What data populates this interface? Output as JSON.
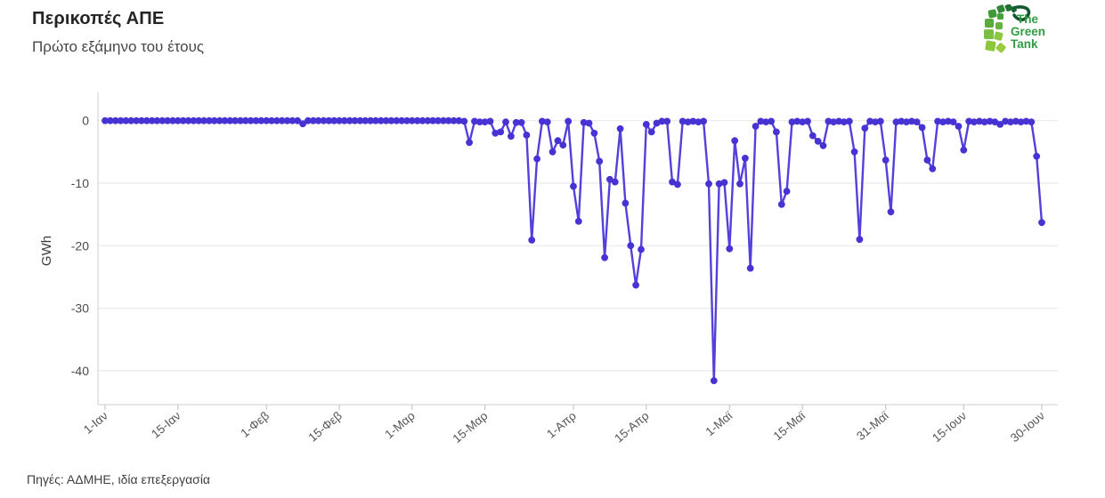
{
  "header": {
    "title": "Περικοπές ΑΠΕ",
    "subtitle": "Πρώτο εξάμηνο του έτους"
  },
  "logo": {
    "line1": "The",
    "line2": "Green",
    "line3": "Tank",
    "text_color": "#2f9c44",
    "tile_colors": [
      "#8dc63f",
      "#7bbf3e",
      "#5aab3a",
      "#3f9a37",
      "#2d8736",
      "#1d7232",
      "#16622f",
      "#4aa23c",
      "#66b43e",
      "#9aca3e",
      "#14572e"
    ]
  },
  "footer": {
    "source": "Πηγές: ΑΔΜΗΕ, ιδία επεξεργασία"
  },
  "chart_data": {
    "type": "line",
    "title": "Περικοπές ΑΠΕ",
    "subtitle": "Πρώτο εξάμηνο του έτους",
    "xlabel": "",
    "ylabel": "GWh",
    "x_unit": "daily values, 1-Ιαν to 30-Ιουν (day index 0..180)",
    "x_tick_labels": [
      "1-Ιαν",
      "15-Ιαν",
      "1-Φεβ",
      "15-Φεβ",
      "1-Μαρ",
      "15-Μαρ",
      "1-Απρ",
      "15-Απρ",
      "1-Μαϊ",
      "15-Μαϊ",
      "31-Μαϊ",
      "15-Ιουν",
      "30-Ιουν"
    ],
    "x_tick_day_index": [
      0,
      14,
      31,
      45,
      59,
      73,
      90,
      104,
      120,
      134,
      150,
      165,
      180
    ],
    "y_ticks": [
      0,
      -10,
      -20,
      -30,
      -40
    ],
    "ylim": [
      3,
      -45.5
    ],
    "grid": "horizontal",
    "legend": "none",
    "line_color": "#5440da",
    "point_color": "#4733d4",
    "values": [
      0,
      0,
      0,
      0,
      0,
      0,
      0,
      0,
      0,
      0,
      0,
      0,
      0,
      0,
      0,
      0,
      0,
      0,
      0,
      0,
      0,
      0,
      0,
      0,
      0,
      0,
      0,
      0,
      0,
      0,
      0,
      0,
      0,
      0,
      0,
      0,
      0,
      0,
      -0.5,
      0,
      0,
      0,
      0,
      0,
      0,
      0,
      0,
      0,
      0,
      0,
      0,
      0,
      0,
      0,
      0,
      0,
      0,
      0,
      0,
      0,
      0,
      0,
      0,
      0,
      0,
      0,
      0,
      0,
      0,
      -0.1,
      -3.5,
      -0.1,
      -0.2,
      -0.2,
      -0.1,
      -2,
      -1.8,
      -0.2,
      -2.5,
      -0.3,
      -0.3,
      -2.3,
      -19.1,
      -6.1,
      -0.1,
      -0.2,
      -5,
      -3.2,
      -3.9,
      -0.1,
      -10.5,
      -16.1,
      -0.3,
      -0.4,
      -2,
      -6.5,
      -21.9,
      -9.4,
      -9.8,
      -1.3,
      -13.2,
      -20,
      -26.3,
      -20.6,
      -0.6,
      -1.8,
      -0.4,
      -0.1,
      -0.1,
      -9.8,
      -10.2,
      -0.1,
      -0.2,
      -0.1,
      -0.2,
      -0.1,
      -10.1,
      -41.6,
      -10.1,
      -9.9,
      -20.5,
      -3.2,
      -10.1,
      -6,
      -23.6,
      -0.9,
      -0.1,
      -0.2,
      -0.1,
      -1.8,
      -13.4,
      -11.3,
      -0.2,
      -0.1,
      -0.2,
      -0.1,
      -2.4,
      -3.3,
      -4,
      -0.1,
      -0.2,
      -0.1,
      -0.2,
      -0.1,
      -5,
      -19,
      -1.2,
      -0.1,
      -0.2,
      -0.1,
      -6.3,
      -14.6,
      -0.2,
      -0.1,
      -0.2,
      -0.1,
      -0.2,
      -1.1,
      -6.3,
      -7.7,
      -0.1,
      -0.2,
      -0.1,
      -0.2,
      -0.9,
      -4.7,
      -0.1,
      -0.2,
      -0.1,
      -0.2,
      -0.1,
      -0.2,
      -0.6,
      -0.1,
      -0.2,
      -0.1,
      -0.2,
      -0.1,
      -0.2,
      -5.7,
      -16.3
    ]
  },
  "axis_style": {
    "grid_color": "#e9e9e9",
    "axis_color": "#d6d6d6",
    "tick_color": "#c9c9c9",
    "tick_label_color": "#4c4c4c"
  }
}
